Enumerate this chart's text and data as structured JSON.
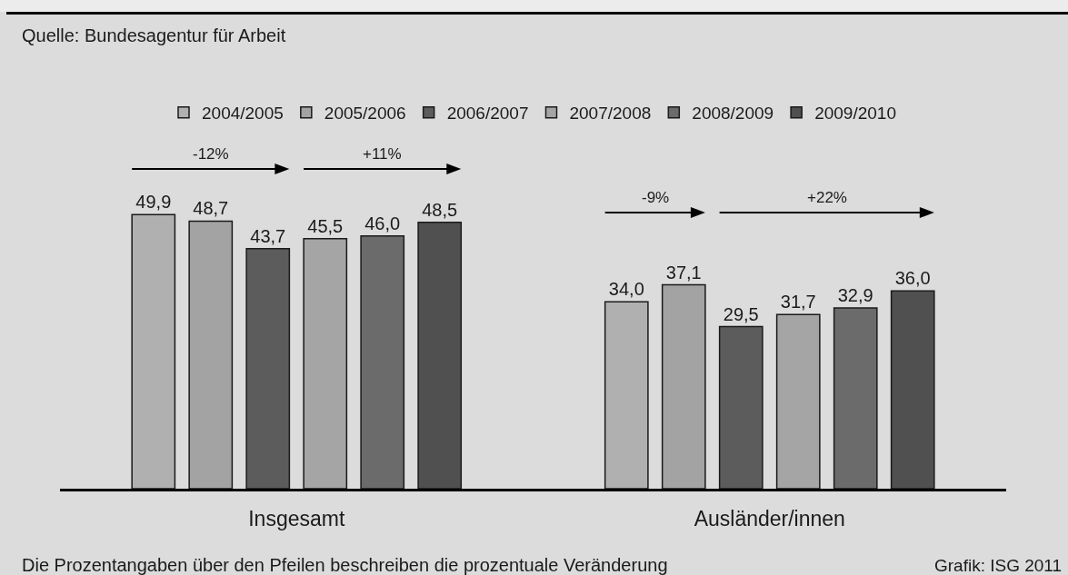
{
  "chart_data": {
    "type": "bar",
    "categories": [
      "Insgesamt",
      "Ausländer/innen"
    ],
    "series": [
      {
        "name": "2004/2005",
        "color": "#b0b0b0",
        "values": [
          49.9,
          34.0
        ],
        "value_labels": [
          "49,9",
          "34,0"
        ]
      },
      {
        "name": "2005/2006",
        "color": "#a3a3a3",
        "values": [
          48.7,
          37.1
        ],
        "value_labels": [
          "48,7",
          "37,1"
        ]
      },
      {
        "name": "2006/2007",
        "color": "#5c5c5c",
        "values": [
          43.7,
          29.5
        ],
        "value_labels": [
          "43,7",
          "29,5"
        ]
      },
      {
        "name": "2007/2008",
        "color": "#a5a5a5",
        "values": [
          45.5,
          31.7
        ],
        "value_labels": [
          "45,5",
          "31,7"
        ]
      },
      {
        "name": "2008/2009",
        "color": "#6b6b6b",
        "values": [
          46.0,
          32.9
        ],
        "value_labels": [
          "46,0",
          "32,9"
        ]
      },
      {
        "name": "2009/2010",
        "color": "#505050",
        "values": [
          48.5,
          36.0
        ],
        "value_labels": [
          "48,5",
          "36,0"
        ]
      }
    ],
    "tick_labels": "x",
    "legend": "top",
    "annotations": [
      "Quelle: Bundesagentur für Arbeit",
      "-12%",
      "+11%",
      "-9%",
      "+22%",
      "Die Prozentangaben über den Pfeilen beschreiben die prozentuale Veränderung",
      "Grafik: ISG 2011"
    ]
  }
}
